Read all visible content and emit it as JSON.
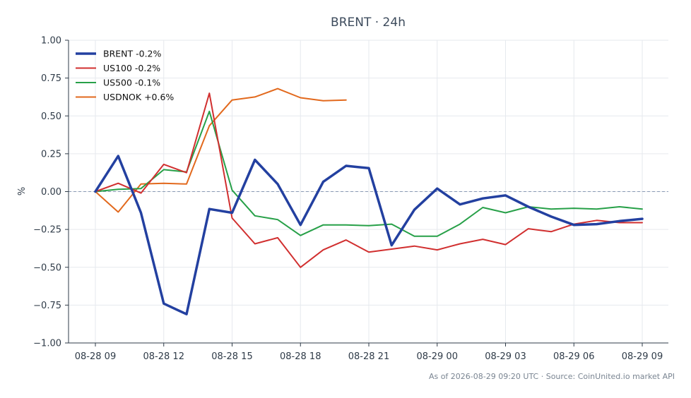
{
  "chart_data": {
    "type": "line",
    "title": "BRENT · 24h",
    "xlabel": "",
    "ylabel": "%",
    "ylim": [
      -1.0,
      1.0
    ],
    "yticks": [
      1.0,
      0.75,
      0.5,
      0.25,
      0.0,
      -0.25,
      -0.5,
      -0.75,
      -1.0
    ],
    "ytick_labels": [
      "1.00",
      "0.75",
      "0.50",
      "0.25",
      "0.00",
      "−0.25",
      "−0.50",
      "−0.75",
      "−1.00"
    ],
    "x": [
      "08-28 09",
      "08-28 10",
      "08-28 11",
      "08-28 12",
      "08-28 13",
      "08-28 14",
      "08-28 15",
      "08-28 16",
      "08-28 17",
      "08-28 18",
      "08-28 19",
      "08-28 20",
      "08-28 21",
      "08-28 22",
      "08-28 23",
      "08-29 00",
      "08-29 01",
      "08-29 02",
      "08-29 03",
      "08-29 04",
      "08-29 05",
      "08-29 06",
      "08-29 07",
      "08-29 08",
      "08-29 09"
    ],
    "xticks": [
      "08-28 09",
      "08-28 12",
      "08-28 15",
      "08-28 18",
      "08-28 21",
      "08-29 00",
      "08-29 03",
      "08-29 06",
      "08-29 09"
    ],
    "reference_line": 0,
    "grid": true,
    "legend": "top-left",
    "series": [
      {
        "name": "BRENT -0.2%",
        "color": "#2340a0",
        "width": 3.5,
        "values": [
          0.0,
          0.235,
          -0.14,
          -0.74,
          -0.81,
          -0.115,
          -0.14,
          0.21,
          0.05,
          -0.22,
          0.065,
          0.17,
          0.155,
          -0.355,
          -0.12,
          0.02,
          -0.085,
          -0.045,
          -0.025,
          -0.1,
          -0.165,
          -0.22,
          -0.215,
          -0.195,
          -0.18
        ]
      },
      {
        "name": "US100 -0.2%",
        "color": "#d12f2f",
        "width": 2,
        "values": [
          0.0,
          0.055,
          -0.01,
          0.18,
          0.125,
          0.65,
          -0.175,
          -0.345,
          -0.305,
          -0.5,
          -0.385,
          -0.32,
          -0.4,
          -0.38,
          -0.36,
          -0.385,
          -0.345,
          -0.315,
          -0.35,
          -0.245,
          -0.265,
          -0.215,
          -0.19,
          -0.205,
          -0.205
        ]
      },
      {
        "name": "US500 -0.1%",
        "color": "#27a048",
        "width": 2,
        "values": [
          0.0,
          0.015,
          0.02,
          0.145,
          0.13,
          0.53,
          0.01,
          -0.16,
          -0.185,
          -0.29,
          -0.22,
          -0.22,
          -0.225,
          -0.215,
          -0.295,
          -0.295,
          -0.215,
          -0.105,
          -0.14,
          -0.1,
          -0.115,
          -0.11,
          -0.115,
          -0.1,
          -0.115
        ]
      },
      {
        "name": "USDNOK +0.6%",
        "color": "#e2691d",
        "width": 2,
        "values": [
          0.0,
          -0.135,
          0.05,
          0.055,
          0.05,
          0.435,
          0.605,
          0.625,
          0.68,
          0.62,
          0.6,
          0.605,
          null,
          null,
          null,
          null,
          null,
          null,
          null,
          null,
          null,
          null,
          null,
          null,
          null
        ]
      }
    ],
    "footer": "As of 2026-08-29 09:20 UTC · Source: CoinUnited.io market API"
  }
}
